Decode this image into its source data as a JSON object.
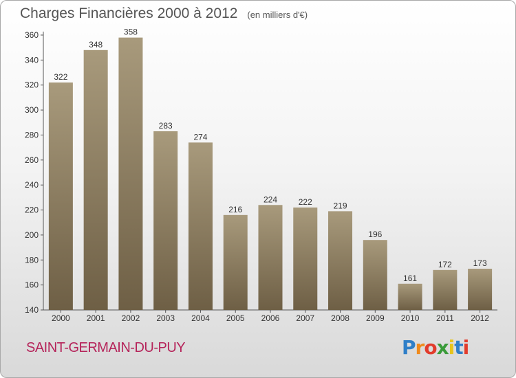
{
  "chart_data": {
    "type": "bar",
    "title": "Charges Financières 2000 à 2012",
    "subtitle": "(en milliers d'€)",
    "categories": [
      "2000",
      "2001",
      "2002",
      "2003",
      "2004",
      "2005",
      "2006",
      "2007",
      "2008",
      "2009",
      "2010",
      "2011",
      "2012"
    ],
    "values": [
      322,
      348,
      358,
      283,
      274,
      216,
      224,
      222,
      219,
      196,
      161,
      172,
      173
    ],
    "ylim": [
      140,
      360
    ],
    "yticks": [
      140,
      160,
      180,
      200,
      220,
      240,
      260,
      280,
      300,
      320,
      340,
      360
    ],
    "grid": false,
    "xlabel": "",
    "ylabel": ""
  },
  "place_name": "SAINT-GERMAIN-DU-PUY",
  "logo": {
    "letters": [
      "P",
      "r",
      "o",
      "x",
      "i",
      "t",
      "i"
    ],
    "colors": [
      "#2f7fc8",
      "#f08a1c",
      "#e23c2c",
      "#3a9b3a",
      "#e7c41c",
      "#2f7fc8",
      "#e23c2c"
    ]
  },
  "colors": {
    "bar_top": "#a89a7c",
    "bar_bottom": "#6e5f45",
    "place": "#b5245a"
  }
}
